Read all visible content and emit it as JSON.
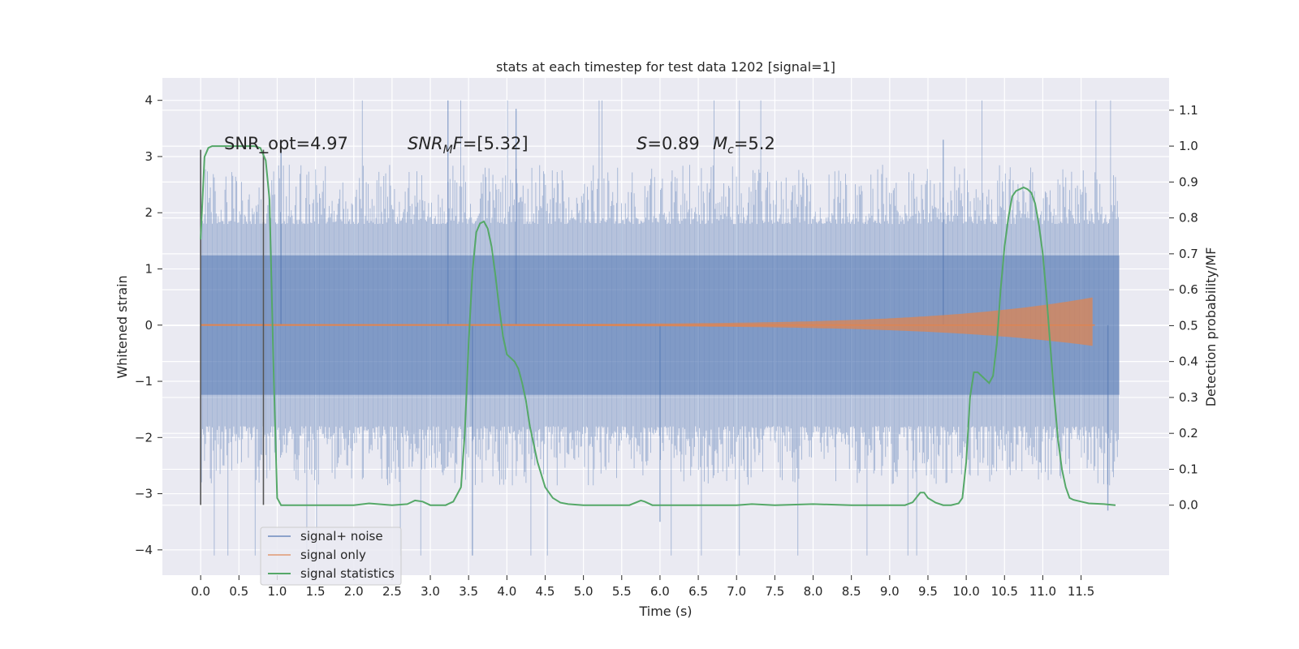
{
  "chart_data": {
    "type": "line",
    "title": "stats at each timestep for test data 1202 [signal=1]",
    "xlabel": "Time (s)",
    "ylabel": "Whitened strain",
    "y2label": "Detection probability/MF",
    "xlim": [
      -0.5,
      12.65
    ],
    "ylim": [
      -4.45,
      4.4
    ],
    "y2lim": [
      -0.195,
      1.19
    ],
    "xticks": [
      "0.0",
      "0.5",
      "1.0",
      "1.5",
      "2.0",
      "2.5",
      "3.0",
      "3.5",
      "4.0",
      "4.5",
      "5.0",
      "5.5",
      "6.0",
      "6.5",
      "7.0",
      "7.5",
      "8.0",
      "8.5",
      "9.0",
      "9.5",
      "10.0",
      "10.5",
      "11.0",
      "11.5"
    ],
    "yticks": [
      "4",
      "3",
      "2",
      "1",
      "0",
      "−1",
      "−2",
      "−3",
      "−4"
    ],
    "y2ticks": [
      "1.1",
      "1.0",
      "0.9",
      "0.8",
      "0.7",
      "0.6",
      "0.5",
      "0.4",
      "0.3",
      "0.2",
      "0.1",
      "0.0"
    ],
    "grid": true,
    "legend_position": "lower-left",
    "colors": {
      "noise": "#4c72b0",
      "signal": "#dd8452",
      "stats": "#55a868",
      "plot_bg": "#eaeaf2",
      "grid": "#ffffff",
      "vline": "#555555"
    },
    "annotations": {
      "snr_opt": "SNR_opt=4.97",
      "snr_mf_name": "SNR",
      "snr_mf_sub": "M",
      "snr_mf_tail": "F=[5.32]",
      "s_name": "S",
      "s_value": "=0.89",
      "mc_name": "M",
      "mc_sub": "c",
      "mc_value": "=5.2"
    },
    "vlines_x": [
      0.0,
      0.82
    ],
    "series": [
      {
        "name": "signal+ noise",
        "type": "noise-band",
        "x_start": 0.0,
        "x_end": 12.0,
        "envelope_upper": 2.0,
        "envelope_lower": -2.0,
        "max_peak": 4.0,
        "min_peak": -4.1
      },
      {
        "name": "signal only",
        "type": "chirp",
        "x_start": 0.0,
        "x_end": 11.68,
        "amplitude_start": 0.02,
        "amplitude_end": 0.5
      },
      {
        "name": "signal statistics",
        "axis": "right",
        "x": [
          0.0,
          0.05,
          0.1,
          0.15,
          0.2,
          0.3,
          0.5,
          0.7,
          0.78,
          0.85,
          0.9,
          0.95,
          1.0,
          1.05,
          1.1,
          1.3,
          1.6,
          2.0,
          2.2,
          2.5,
          2.7,
          2.8,
          2.9,
          3.0,
          3.2,
          3.3,
          3.4,
          3.45,
          3.5,
          3.55,
          3.6,
          3.65,
          3.7,
          3.75,
          3.8,
          3.85,
          3.9,
          3.95,
          4.0,
          4.05,
          4.1,
          4.15,
          4.2,
          4.25,
          4.3,
          4.4,
          4.5,
          4.6,
          4.7,
          4.8,
          5.0,
          5.3,
          5.6,
          5.75,
          5.8,
          5.9,
          6.0,
          6.5,
          7.0,
          7.2,
          7.5,
          8.0,
          8.5,
          9.0,
          9.2,
          9.3,
          9.4,
          9.45,
          9.5,
          9.6,
          9.7,
          9.8,
          9.9,
          9.95,
          10.0,
          10.05,
          10.1,
          10.15,
          10.2,
          10.25,
          10.3,
          10.35,
          10.4,
          10.45,
          10.5,
          10.55,
          10.6,
          10.65,
          10.7,
          10.75,
          10.8,
          10.85,
          10.9,
          10.95,
          11.0,
          11.05,
          11.1,
          11.15,
          11.2,
          11.25,
          11.3,
          11.35,
          11.4,
          11.5,
          11.6,
          11.8,
          11.95
        ],
        "values": [
          0.74,
          0.97,
          0.995,
          1.0,
          1.0,
          1.0,
          1.0,
          1.0,
          0.995,
          0.96,
          0.85,
          0.4,
          0.02,
          0.0,
          0.0,
          0.0,
          0.0,
          0.0,
          0.005,
          0.0,
          0.003,
          0.013,
          0.01,
          0.0,
          0.0,
          0.01,
          0.05,
          0.2,
          0.45,
          0.65,
          0.76,
          0.785,
          0.79,
          0.77,
          0.72,
          0.64,
          0.55,
          0.47,
          0.42,
          0.41,
          0.4,
          0.38,
          0.34,
          0.29,
          0.22,
          0.12,
          0.05,
          0.02,
          0.007,
          0.003,
          0.0,
          0.0,
          0.0,
          0.013,
          0.01,
          0.0,
          0.0,
          0.0,
          0.0,
          0.003,
          0.0,
          0.003,
          0.0,
          0.0,
          0.0,
          0.008,
          0.035,
          0.035,
          0.02,
          0.007,
          0.0,
          0.0,
          0.005,
          0.02,
          0.12,
          0.3,
          0.37,
          0.37,
          0.36,
          0.35,
          0.34,
          0.36,
          0.45,
          0.6,
          0.72,
          0.8,
          0.86,
          0.875,
          0.88,
          0.885,
          0.88,
          0.87,
          0.84,
          0.78,
          0.7,
          0.58,
          0.44,
          0.3,
          0.18,
          0.1,
          0.05,
          0.02,
          0.015,
          0.01,
          0.005,
          0.003,
          0.0
        ]
      }
    ]
  }
}
